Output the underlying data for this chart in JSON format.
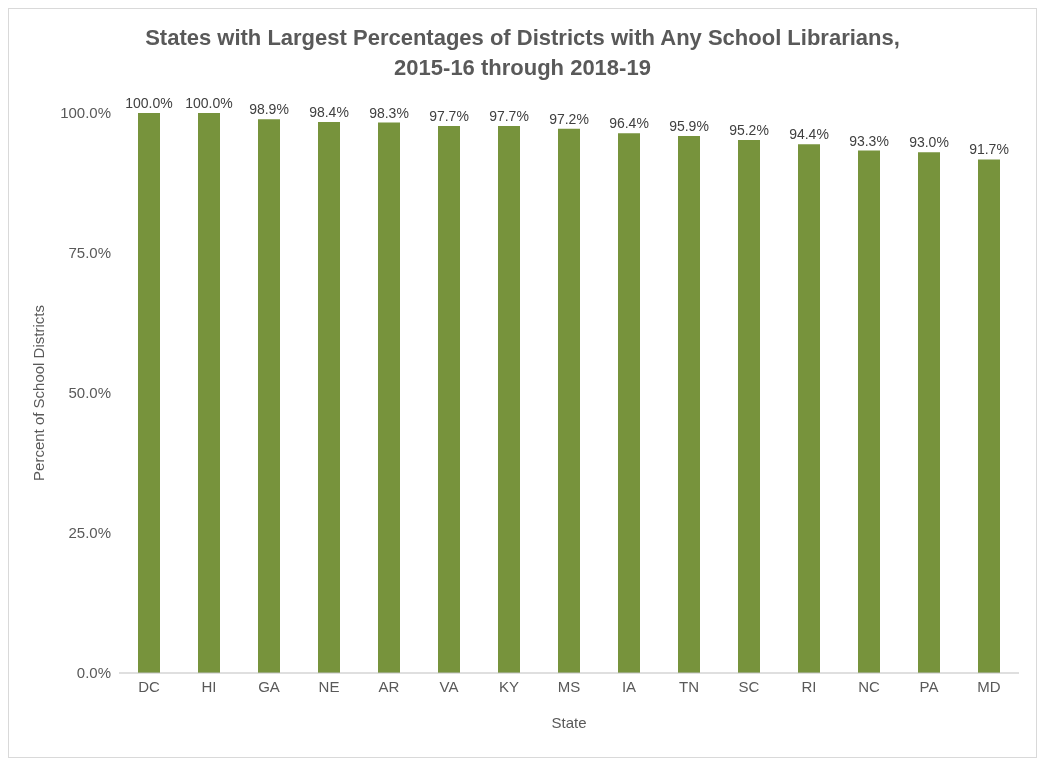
{
  "chart_data": {
    "type": "bar",
    "title": "States with Largest Percentages of Districts with Any School Librarians, 2015-16 through 2018-19",
    "xlabel": "State",
    "ylabel": "Percent of School Districts",
    "categories": [
      "DC",
      "HI",
      "GA",
      "NE",
      "AR",
      "VA",
      "KY",
      "MS",
      "IA",
      "TN",
      "SC",
      "RI",
      "NC",
      "PA",
      "MD"
    ],
    "values": [
      100,
      100,
      98.9,
      98.4,
      98.3,
      97.7,
      97.7,
      97.2,
      96.4,
      95.9,
      95.2,
      94.4,
      93.3,
      93.0,
      91.7
    ],
    "value_labels": [
      "100.0%",
      "100.0%",
      "98.9%",
      "98.4%",
      "98.3%",
      "97.7%",
      "97.7%",
      "97.2%",
      "96.4%",
      "95.9%",
      "95.2%",
      "94.4%",
      "93.3%",
      "93.0%",
      "91.7%"
    ],
    "color": "#77933c",
    "ylim": [
      0,
      100
    ],
    "yticks": [
      {
        "value": 0,
        "label": "0.0%"
      },
      {
        "value": 25,
        "label": "25.0%"
      },
      {
        "value": 50,
        "label": "50.0%"
      },
      {
        "value": 75,
        "label": "75.0%"
      },
      {
        "value": 100,
        "label": "100.0%"
      }
    ],
    "grid": false,
    "legend": false
  }
}
